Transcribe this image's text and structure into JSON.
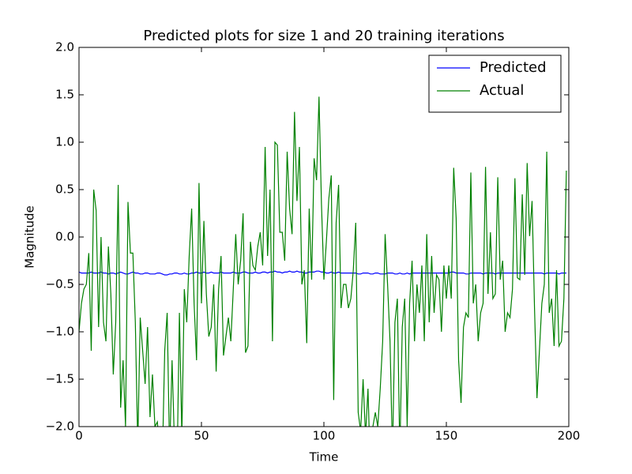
{
  "chart_data": {
    "type": "line",
    "title": "Predicted plots for size 1 and 20 training iterations",
    "xlabel": "Time",
    "ylabel": "Magnitude",
    "xlim": [
      0,
      200
    ],
    "ylim": [
      -2,
      2
    ],
    "xticks": [
      0,
      50,
      100,
      150,
      200
    ],
    "yticks": [
      {
        "value": -2,
        "label": "−2.0"
      },
      {
        "value": -1.5,
        "label": "−1.5"
      },
      {
        "value": -1,
        "label": "−1.0"
      },
      {
        "value": -0.5,
        "label": "−0.5"
      },
      {
        "value": 0,
        "label": "0.0"
      },
      {
        "value": 0.5,
        "label": "0.5"
      },
      {
        "value": 1,
        "label": "1.0"
      },
      {
        "value": 1.5,
        "label": "1.5"
      },
      {
        "value": 2,
        "label": "2.0"
      }
    ],
    "legend": "upper right",
    "x": [
      0,
      1,
      2,
      3,
      4,
      5,
      6,
      7,
      8,
      9,
      10,
      11,
      12,
      13,
      14,
      15,
      16,
      17,
      18,
      19,
      20,
      21,
      22,
      23,
      24,
      25,
      26,
      27,
      28,
      29,
      30,
      31,
      32,
      33,
      34,
      35,
      36,
      37,
      38,
      39,
      40,
      41,
      42,
      43,
      44,
      45,
      46,
      47,
      48,
      49,
      50,
      51,
      52,
      53,
      54,
      55,
      56,
      57,
      58,
      59,
      60,
      61,
      62,
      63,
      64,
      65,
      66,
      67,
      68,
      69,
      70,
      71,
      72,
      73,
      74,
      75,
      76,
      77,
      78,
      79,
      80,
      81,
      82,
      83,
      84,
      85,
      86,
      87,
      88,
      89,
      90,
      91,
      92,
      93,
      94,
      95,
      96,
      97,
      98,
      99,
      100,
      101,
      102,
      103,
      104,
      105,
      106,
      107,
      108,
      109,
      110,
      111,
      112,
      113,
      114,
      115,
      116,
      117,
      118,
      119,
      120,
      121,
      122,
      123,
      124,
      125,
      126,
      127,
      128,
      129,
      130,
      131,
      132,
      133,
      134,
      135,
      136,
      137,
      138,
      139,
      140,
      141,
      142,
      143,
      144,
      145,
      146,
      147,
      148,
      149,
      150,
      151,
      152,
      153,
      154,
      155,
      156,
      157,
      158,
      159,
      160,
      161,
      162,
      163,
      164,
      165,
      166,
      167,
      168,
      169,
      170,
      171,
      172,
      173,
      174,
      175,
      176,
      177,
      178,
      179,
      180,
      181,
      182,
      183,
      184,
      185,
      186,
      187,
      188,
      189,
      190,
      191,
      192,
      193,
      194,
      195,
      196,
      197,
      198,
      199
    ],
    "series": [
      {
        "name": "Predicted",
        "color": "#0000ff",
        "values": [
          -0.37,
          -0.38,
          -0.38,
          -0.38,
          -0.38,
          -0.37,
          -0.38,
          -0.38,
          -0.38,
          -0.37,
          -0.38,
          -0.38,
          -0.39,
          -0.38,
          -0.38,
          -0.39,
          -0.38,
          -0.37,
          -0.38,
          -0.39,
          -0.39,
          -0.38,
          -0.37,
          -0.38,
          -0.38,
          -0.39,
          -0.39,
          -0.38,
          -0.38,
          -0.39,
          -0.39,
          -0.39,
          -0.38,
          -0.38,
          -0.39,
          -0.4,
          -0.4,
          -0.39,
          -0.39,
          -0.38,
          -0.38,
          -0.39,
          -0.39,
          -0.38,
          -0.39,
          -0.39,
          -0.38,
          -0.38,
          -0.37,
          -0.38,
          -0.38,
          -0.37,
          -0.38,
          -0.38,
          -0.37,
          -0.38,
          -0.38,
          -0.38,
          -0.37,
          -0.38,
          -0.38,
          -0.38,
          -0.38,
          -0.37,
          -0.38,
          -0.38,
          -0.38,
          -0.37,
          -0.37,
          -0.38,
          -0.38,
          -0.38,
          -0.37,
          -0.38,
          -0.38,
          -0.37,
          -0.37,
          -0.38,
          -0.37,
          -0.37,
          -0.36,
          -0.37,
          -0.37,
          -0.38,
          -0.37,
          -0.37,
          -0.36,
          -0.37,
          -0.37,
          -0.36,
          -0.37,
          -0.37,
          -0.38,
          -0.38,
          -0.37,
          -0.37,
          -0.37,
          -0.36,
          -0.36,
          -0.37,
          -0.37,
          -0.38,
          -0.38,
          -0.37,
          -0.38,
          -0.38,
          -0.37,
          -0.38,
          -0.38,
          -0.38,
          -0.38,
          -0.38,
          -0.38,
          -0.38,
          -0.39,
          -0.39,
          -0.38,
          -0.38,
          -0.38,
          -0.39,
          -0.39,
          -0.38,
          -0.38,
          -0.39,
          -0.39,
          -0.39,
          -0.38,
          -0.38,
          -0.38,
          -0.39,
          -0.39,
          -0.38,
          -0.39,
          -0.39,
          -0.38,
          -0.39,
          -0.38,
          -0.38,
          -0.38,
          -0.38,
          -0.38,
          -0.38,
          -0.38,
          -0.38,
          -0.38,
          -0.38,
          -0.38,
          -0.38,
          -0.38,
          -0.38,
          -0.38,
          -0.38,
          -0.37,
          -0.37,
          -0.38,
          -0.38,
          -0.38,
          -0.38,
          -0.39,
          -0.39,
          -0.38,
          -0.38,
          -0.38,
          -0.38,
          -0.38,
          -0.39,
          -0.38,
          -0.38,
          -0.38,
          -0.38,
          -0.39,
          -0.38,
          -0.38,
          -0.38,
          -0.38,
          -0.38,
          -0.38,
          -0.38,
          -0.38,
          -0.38,
          -0.38,
          -0.38,
          -0.38,
          -0.38,
          -0.38,
          -0.38,
          -0.38,
          -0.38,
          -0.38,
          -0.38,
          -0.39,
          -0.38,
          -0.38,
          -0.38,
          -0.38,
          -0.38,
          -0.39,
          -0.38,
          -0.38,
          -0.38
        ]
      },
      {
        "name": "Actual",
        "color": "#008000",
        "values": [
          -1.0,
          -0.7,
          -0.55,
          -0.5,
          -0.17,
          -1.2,
          0.5,
          0.28,
          -0.95,
          0.0,
          -0.9,
          -1.1,
          -0.1,
          -0.6,
          -1.45,
          -0.9,
          0.55,
          -1.8,
          -1.3,
          -2.0,
          0.37,
          -0.17,
          -0.17,
          -0.9,
          -2.2,
          -0.85,
          -1.2,
          -1.55,
          -0.95,
          -1.9,
          -1.45,
          -2.0,
          -1.95,
          -2.3,
          -2.4,
          -1.2,
          -0.8,
          -2.3,
          -1.3,
          -2.2,
          -2.5,
          -0.8,
          -2.1,
          -0.55,
          -0.9,
          -0.2,
          0.3,
          -0.7,
          -1.3,
          0.57,
          -0.7,
          0.17,
          -0.6,
          -1.05,
          -0.95,
          -0.5,
          -1.42,
          -0.55,
          -0.2,
          -1.25,
          -1.05,
          -0.85,
          -1.1,
          -0.55,
          0.03,
          -0.5,
          -0.25,
          0.25,
          -1.22,
          -1.15,
          -0.05,
          -0.3,
          -0.35,
          -0.1,
          0.05,
          -0.3,
          0.95,
          -0.2,
          0.5,
          -1.1,
          1.0,
          0.97,
          0.05,
          0.05,
          -0.25,
          0.9,
          0.3,
          0.03,
          1.32,
          0.38,
          0.95,
          -0.5,
          -0.35,
          -1.12,
          0.3,
          -0.45,
          0.83,
          0.6,
          1.48,
          0.35,
          -0.45,
          -0.05,
          0.4,
          0.65,
          -1.72,
          0.15,
          0.55,
          -0.75,
          -0.5,
          -0.5,
          -0.75,
          -0.65,
          -0.35,
          0.15,
          -1.85,
          -2.05,
          -1.5,
          -2.1,
          -1.6,
          -2.5,
          -2.0,
          -1.85,
          -2.0,
          -1.6,
          -1.1,
          0.03,
          -0.5,
          -1.1,
          -2.3,
          -0.9,
          -0.65,
          -2.3,
          -0.95,
          -0.65,
          -2.0,
          -0.7,
          -0.25,
          -1.1,
          -0.5,
          -0.8,
          -0.3,
          -1.1,
          0.03,
          -0.9,
          -0.2,
          -0.8,
          -0.4,
          -0.45,
          -1.0,
          -0.3,
          -0.65,
          -0.3,
          -0.65,
          0.73,
          0.2,
          -1.3,
          -1.75,
          -0.95,
          -0.8,
          -0.85,
          0.68,
          -0.7,
          -0.5,
          -1.1,
          -0.8,
          -0.7,
          0.74,
          -0.6,
          0.05,
          -0.65,
          -0.6,
          0.63,
          -0.45,
          -0.25,
          -1.0,
          -0.8,
          -0.85,
          -0.55,
          0.62,
          -0.43,
          -0.45,
          0.45,
          -0.4,
          0.78,
          0.01,
          0.38,
          -0.75,
          -1.7,
          -1.2,
          -0.7,
          -0.5,
          0.9,
          -0.8,
          -0.65,
          -1.15,
          -0.35,
          -1.15,
          -1.1,
          -0.65,
          0.7
        ]
      }
    ]
  }
}
